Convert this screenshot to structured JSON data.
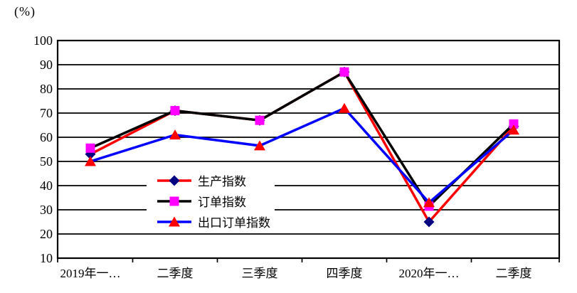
{
  "chart_data": {
    "type": "line",
    "title": "",
    "ylabel": "(%)",
    "xlabel": "",
    "categories": [
      "2019年一…",
      "二季度",
      "三季度",
      "四季度",
      "2020年一…",
      "二季度"
    ],
    "series": [
      {
        "id": "production-index",
        "name": "生产指数",
        "line_color": "#FF0000",
        "marker": "diamond",
        "marker_color": "#000080",
        "values": [
          53,
          71,
          67,
          87,
          25,
          64.5
        ]
      },
      {
        "id": "order-index",
        "name": "订单指数",
        "line_color": "#000000",
        "marker": "square",
        "marker_color": "#FF00FF",
        "values": [
          55.5,
          71,
          67,
          87,
          31.5,
          65.5
        ]
      },
      {
        "id": "export-order-index",
        "name": "出口订单指数",
        "line_color": "#0000FF",
        "marker": "triangle",
        "marker_color": "#FF0000",
        "values": [
          50,
          61,
          56.5,
          72,
          33,
          63
        ]
      }
    ],
    "ylim": [
      10,
      100
    ],
    "yticks": [
      10,
      20,
      30,
      40,
      50,
      60,
      70,
      80,
      90,
      100
    ],
    "grid": "horizontal-black-solid",
    "legend_position": "inside-center-left",
    "axis_color": "#000000",
    "background_color": "#FFFFFF"
  }
}
